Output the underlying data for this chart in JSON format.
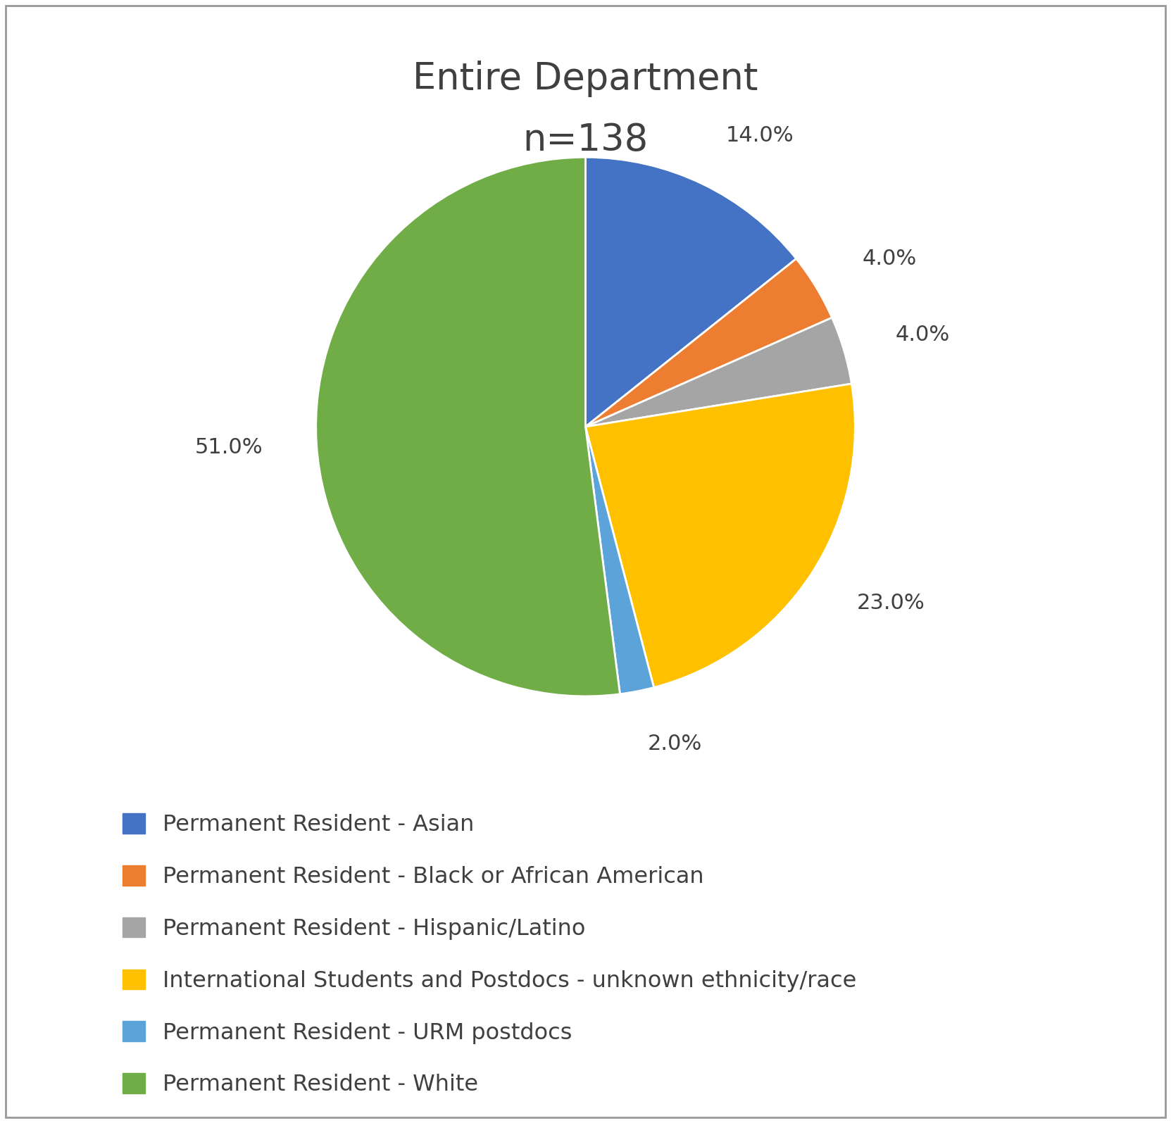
{
  "title_line1": "Entire Department",
  "title_line2": "n=138",
  "slices": [
    {
      "label": "Permanent Resident - Asian",
      "pct": 14.0,
      "color": "#4472C4"
    },
    {
      "label": "Permanent Resident - Black or African American",
      "pct": 4.0,
      "color": "#ED7D31"
    },
    {
      "label": "Permanent Resident - Hispanic/Latino",
      "pct": 4.0,
      "color": "#A5A5A5"
    },
    {
      "label": "International Students and Postdocs - unknown ethnicity/race",
      "pct": 23.0,
      "color": "#FFC000"
    },
    {
      "label": "Permanent Resident - URM postdocs",
      "pct": 2.0,
      "color": "#5BA3D9"
    },
    {
      "label": "Permanent Resident - White",
      "pct": 51.0,
      "color": "#70AD47"
    }
  ],
  "title_fontsize": 38,
  "label_fontsize": 22,
  "legend_fontsize": 23,
  "background_color": "#ffffff",
  "text_color": "#404040"
}
